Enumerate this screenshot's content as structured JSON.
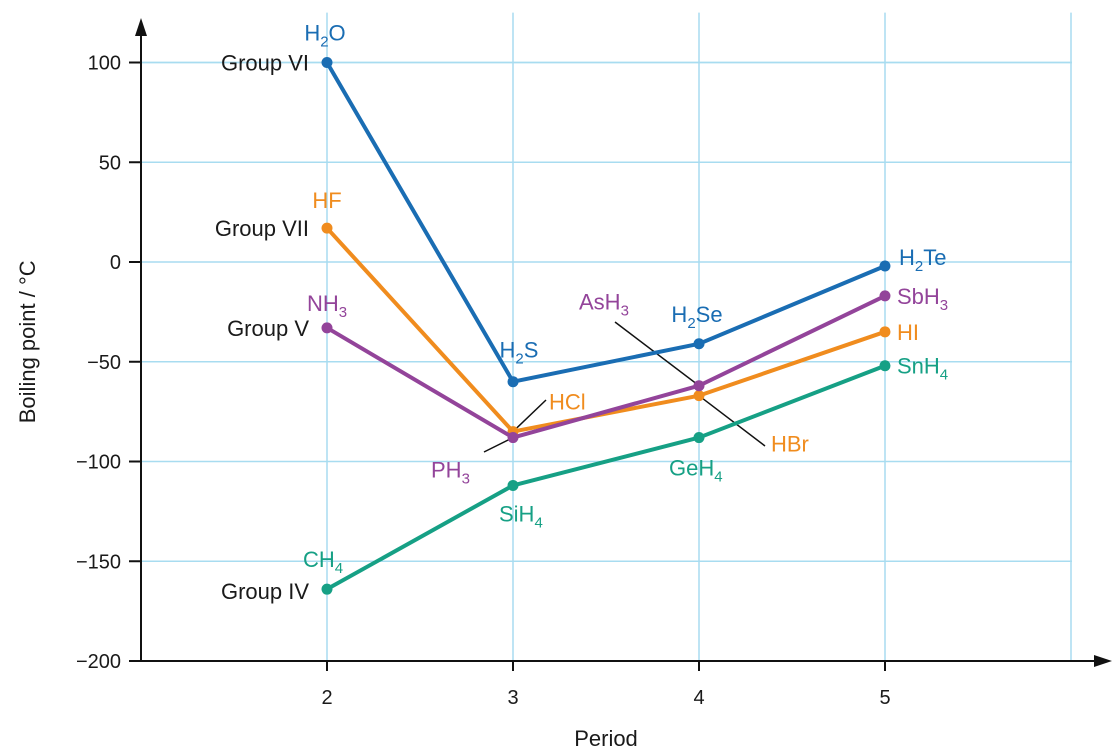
{
  "chart_data": {
    "type": "line",
    "title": "",
    "xlabel": "Period",
    "ylabel": "Boiling point / °C",
    "x": [
      2,
      3,
      4,
      5
    ],
    "xlim": [
      1,
      6
    ],
    "ylim": [
      -200,
      120
    ],
    "yticks": [
      100,
      50,
      0,
      -50,
      -100,
      -150,
      -200
    ],
    "xticks": [
      2,
      3,
      4,
      5
    ],
    "grid": true,
    "colors": {
      "grid": "#a8dcf0",
      "axis": "#111111",
      "group_vi": "#1a6db3",
      "group_vii": "#f08c1e",
      "group_v": "#93449a",
      "group_iv": "#16a085"
    },
    "series": [
      {
        "key": "group_vi",
        "name": "Group VI",
        "color": "#1a6db3",
        "values": [
          100,
          -60,
          -41,
          -2
        ],
        "labels": [
          {
            "base": "H",
            "sub": "2",
            "tail": "O"
          },
          {
            "base": "H",
            "sub": "2",
            "tail": "S"
          },
          {
            "base": "H",
            "sub": "2",
            "tail": "Se"
          },
          {
            "base": "H",
            "sub": "2",
            "tail": "Te"
          }
        ]
      },
      {
        "key": "group_vii",
        "name": "Group VII",
        "color": "#f08c1e",
        "values": [
          17,
          -85,
          -67,
          -35
        ],
        "labels": [
          {
            "base": "HF",
            "sub": "",
            "tail": ""
          },
          {
            "base": "HCl",
            "sub": "",
            "tail": ""
          },
          {
            "base": "HBr",
            "sub": "",
            "tail": ""
          },
          {
            "base": "HI",
            "sub": "",
            "tail": ""
          }
        ]
      },
      {
        "key": "group_v",
        "name": "Group V",
        "color": "#93449a",
        "values": [
          -33,
          -88,
          -62,
          -17
        ],
        "labels": [
          {
            "base": "NH",
            "sub": "3",
            "tail": ""
          },
          {
            "base": "PH",
            "sub": "3",
            "tail": ""
          },
          {
            "base": "AsH",
            "sub": "3",
            "tail": ""
          },
          {
            "base": "SbH",
            "sub": "3",
            "tail": ""
          }
        ]
      },
      {
        "key": "group_iv",
        "name": "Group IV",
        "color": "#16a085",
        "values": [
          -164,
          -112,
          -88,
          -52
        ],
        "labels": [
          {
            "base": "CH",
            "sub": "4",
            "tail": ""
          },
          {
            "base": "SiH",
            "sub": "4",
            "tail": ""
          },
          {
            "base": "GeH",
            "sub": "4",
            "tail": ""
          },
          {
            "base": "SnH",
            "sub": "4",
            "tail": ""
          }
        ]
      }
    ]
  }
}
